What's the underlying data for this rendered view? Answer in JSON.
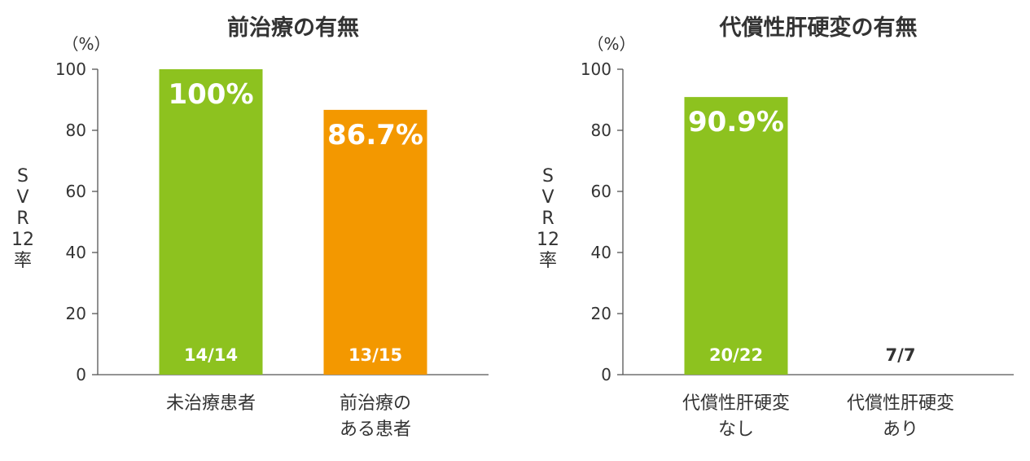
{
  "chart_data": [
    {
      "type": "bar",
      "title": "前治療の有無",
      "unit": "（%）",
      "ylabel": "SVR12率",
      "ylim": [
        0,
        100
      ],
      "yticks": [
        "0",
        "20",
        "40",
        "60",
        "80",
        "100"
      ],
      "categories": [
        "未治療患者",
        "前治療のある患者"
      ],
      "category_lines": [
        [
          "未治療患者"
        ],
        [
          "前治療の",
          "ある患者"
        ]
      ],
      "values": [
        100,
        86.7
      ],
      "value_labels": [
        "100%",
        "86.7%"
      ],
      "count_labels": [
        "14/14",
        "13/15"
      ],
      "colors": [
        "#8dc21f",
        "#f39800"
      ]
    },
    {
      "type": "bar",
      "title": "代償性肝硬変の有無",
      "unit": "（%）",
      "ylabel": "SVR12率",
      "ylim": [
        0,
        100
      ],
      "yticks": [
        "0",
        "20",
        "40",
        "60",
        "80",
        "100"
      ],
      "categories": [
        "代償性肝硬変なし",
        "代償性肝硬変あり"
      ],
      "category_lines": [
        [
          "代償性肝硬変",
          "なし"
        ],
        [
          "代償性肝硬変",
          "あり"
        ]
      ],
      "values": [
        90.9,
        null
      ],
      "value_labels": [
        "90.9%",
        ""
      ],
      "count_labels": [
        "20/22",
        "7/7"
      ],
      "colors": [
        "#8dc21f",
        "#8dc21f"
      ]
    }
  ]
}
